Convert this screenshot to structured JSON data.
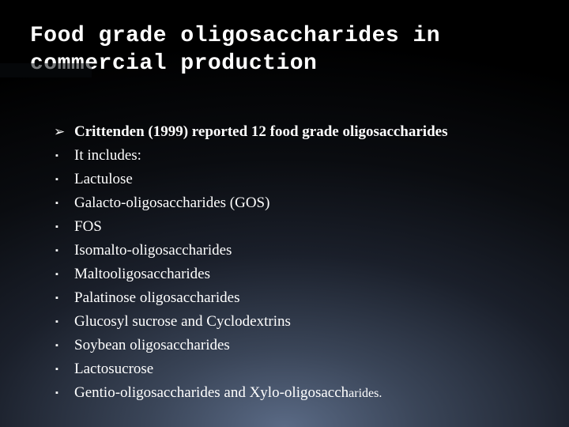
{
  "title": {
    "line1": "Food grade oligosaccharides in",
    "line2": "commercial production"
  },
  "items": [
    {
      "bullet": "arrow",
      "html": "<span class='bold'>Crittenden (1999) reported 12 food grade oligosaccharides</span>"
    },
    {
      "bullet": "square",
      "html": "It  includes:"
    },
    {
      "bullet": "square",
      "html": "Lactulose"
    },
    {
      "bullet": "square",
      "html": " Galacto-oligosaccharides (GOS)"
    },
    {
      "bullet": "square",
      "html": "FOS"
    },
    {
      "bullet": "square",
      "html": " Isomalto-oligosaccharides"
    },
    {
      "bullet": "square",
      "html": "Maltooligosaccharides"
    },
    {
      "bullet": "square",
      "html": "Palatinose oligosaccharides"
    },
    {
      "bullet": "square",
      "html": "Glucosyl sucrose and Cyclodextrins"
    },
    {
      "bullet": "square",
      "html": "Soybean oligosaccharides"
    },
    {
      "bullet": "square",
      "html": "Lactosucrose"
    },
    {
      "bullet": "square",
      "html": "Gentio-oligosaccharides and Xylo-oligosacch<span class='sm'>arides.</span>"
    }
  ],
  "bullets": {
    "arrow": "➢",
    "square": "▪"
  },
  "colors": {
    "text": "#ffffff",
    "bg_outer": "#000000",
    "bg_inner": "#5a6a85"
  }
}
